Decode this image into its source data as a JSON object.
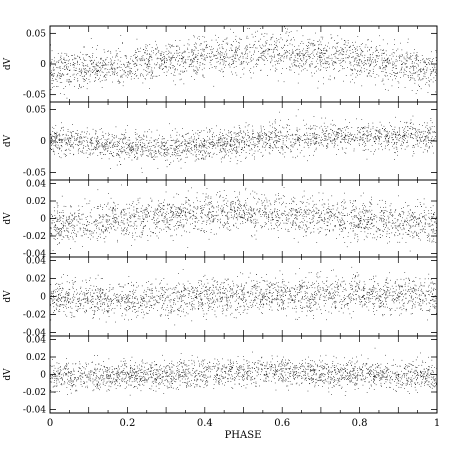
{
  "chart_data": {
    "type": "scatter",
    "xlabel": "PHASE",
    "xlim": [
      0,
      1
    ],
    "x_ticks": [
      {
        "value": 0,
        "label": "0"
      },
      {
        "value": 0.2,
        "label": "0.2"
      },
      {
        "value": 0.4,
        "label": "0.4"
      },
      {
        "value": 0.6,
        "label": "0.6"
      },
      {
        "value": 0.8,
        "label": "0.8"
      },
      {
        "value": 1,
        "label": "1"
      }
    ],
    "marker_color": "#000000",
    "panels": [
      {
        "ylabel": "dV",
        "ylim": [
          -0.062,
          0.062
        ],
        "y_ticks": [
          {
            "value": 0.05,
            "label": "0.05"
          },
          {
            "value": 0,
            "label": "0"
          },
          {
            "value": -0.05,
            "label": "-0.05"
          }
        ],
        "trend": {
          "phase": [
            0,
            0.25,
            0.5,
            0.55,
            0.75,
            1
          ],
          "dV": [
            -0.012,
            0.0,
            0.018,
            0.02,
            0.012,
            -0.012
          ]
        },
        "scatter_sd": 0.016
      },
      {
        "ylabel": "dV",
        "ylim": [
          -0.062,
          0.062
        ],
        "y_ticks": [
          {
            "value": 0.05,
            "label": "0.05"
          },
          {
            "value": 0,
            "label": "0"
          },
          {
            "value": -0.05,
            "label": "-0.05"
          }
        ],
        "trend": {
          "phase": [
            0,
            0.1,
            0.3,
            0.6,
            0.8,
            1
          ],
          "dV": [
            0.003,
            -0.003,
            -0.012,
            0.004,
            0.008,
            0.009
          ]
        },
        "scatter_sd": 0.012
      },
      {
        "ylabel": "dV",
        "ylim": [
          -0.044,
          0.044
        ],
        "y_ticks": [
          {
            "value": 0.04,
            "label": "0.04"
          },
          {
            "value": 0.02,
            "label": "0.02"
          },
          {
            "value": 0,
            "label": "0"
          },
          {
            "value": -0.02,
            "label": "-0.02"
          },
          {
            "value": -0.04,
            "label": "-0.04"
          }
        ],
        "trend": {
          "phase": [
            0,
            0.25,
            0.5,
            0.75,
            1
          ],
          "dV": [
            -0.008,
            0.002,
            0.008,
            0.001,
            -0.007
          ]
        },
        "scatter_sd": 0.011
      },
      {
        "ylabel": "dV",
        "ylim": [
          -0.044,
          0.044
        ],
        "y_ticks": [
          {
            "value": 0.04,
            "label": "0.04"
          },
          {
            "value": 0.02,
            "label": "0.02"
          },
          {
            "value": 0,
            "label": "0"
          },
          {
            "value": -0.02,
            "label": "-0.02"
          },
          {
            "value": -0.04,
            "label": "-0.04"
          }
        ],
        "trend": {
          "phase": [
            0,
            0.25,
            0.5,
            0.75,
            1
          ],
          "dV": [
            -0.003,
            -0.003,
            0.001,
            0.004,
            0.002
          ]
        },
        "scatter_sd": 0.01
      },
      {
        "ylabel": "dV",
        "ylim": [
          -0.044,
          0.044
        ],
        "y_ticks": [
          {
            "value": 0.04,
            "label": "0.04"
          },
          {
            "value": 0.02,
            "label": "0.02"
          },
          {
            "value": 0,
            "label": "0"
          },
          {
            "value": -0.02,
            "label": "-0.02"
          },
          {
            "value": -0.04,
            "label": "-0.04"
          }
        ],
        "trend": {
          "phase": [
            0,
            0.25,
            0.5,
            0.6,
            0.75,
            1
          ],
          "dV": [
            -0.002,
            0.0,
            0.004,
            0.004,
            0.001,
            -0.002
          ]
        },
        "scatter_sd": 0.008
      }
    ]
  }
}
